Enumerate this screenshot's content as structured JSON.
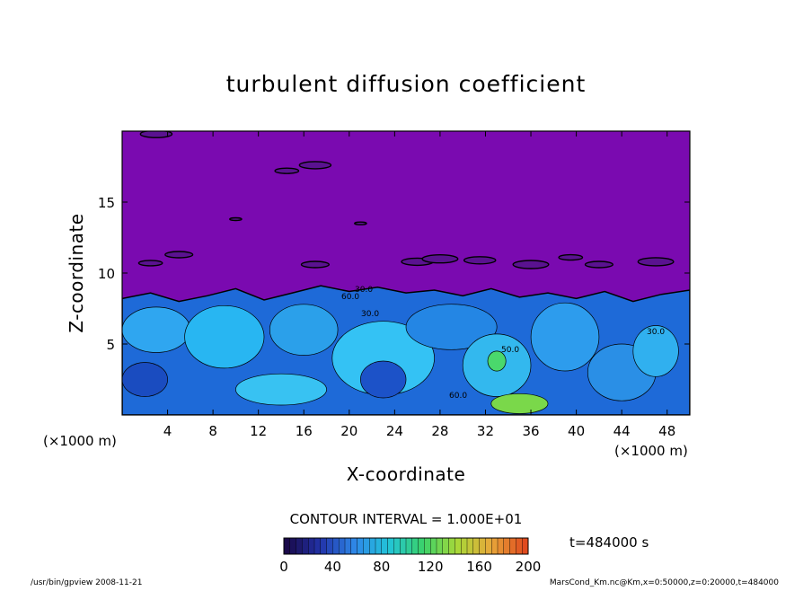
{
  "chart_data": {
    "type": "heatmap",
    "title": "turbulent diffusion coefficient",
    "xlabel": "X-coordinate",
    "ylabel": "Z-coordinate",
    "x_unit": "(×1000 m)",
    "y_unit": "(×1000 m)",
    "xlim": [
      0,
      50
    ],
    "ylim": [
      0,
      20
    ],
    "x_ticks": [
      4,
      8,
      12,
      16,
      20,
      24,
      28,
      32,
      36,
      40,
      44,
      48
    ],
    "y_ticks": [
      5,
      10,
      15
    ],
    "contour_interval_text": "CONTOUR INTERVAL = 1.000E+01",
    "colorbar": {
      "min": 0,
      "max": 200,
      "ticks": [
        0,
        40,
        80,
        120,
        160,
        200
      ],
      "colors": [
        "#1a0a4a",
        "#2233aa",
        "#2e88e8",
        "#22c4d8",
        "#3ad26a",
        "#a8d838",
        "#e8a83a",
        "#e04a1e"
      ]
    },
    "background_color": "#7a0ab0",
    "contour_labels": [
      "30.0",
      "60.0",
      "30.0",
      "50.0",
      "60.0",
      "30.0"
    ],
    "time_label": "t=484000 s",
    "footer_left": "/usr/bin/gpview   2008-11-21",
    "footer_right": "MarsCond_Km.nc@Km,x=0:50000,z=0:20000,t=484000"
  }
}
